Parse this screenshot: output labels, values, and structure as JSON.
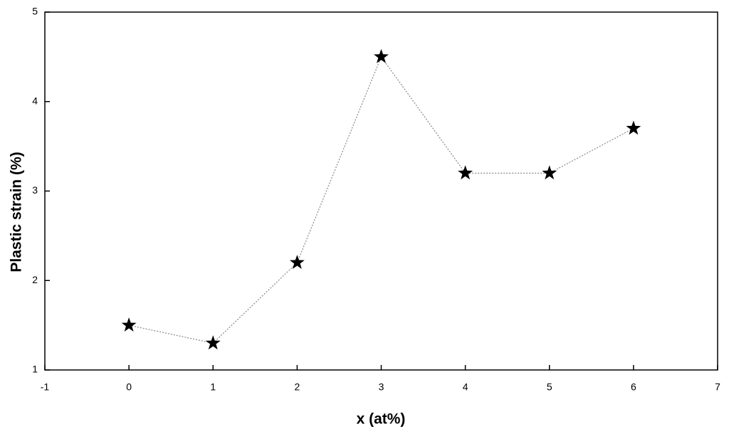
{
  "chart_data": {
    "type": "line",
    "xlabel": "x (at%)",
    "ylabel": "Plastic strain (%)",
    "x": [
      0,
      1,
      2,
      3,
      4,
      5,
      6
    ],
    "series": [
      {
        "color": "#000000",
        "line_color": "#888888",
        "line_style": "dotted",
        "marker": "star",
        "values": [
          1.5,
          1.3,
          2.2,
          4.5,
          3.2,
          3.2,
          3.7
        ]
      }
    ],
    "xlim": [
      -1,
      7
    ],
    "xticks": [
      -1,
      0,
      1,
      2,
      3,
      4,
      5,
      6,
      7
    ],
    "ylim": [
      1,
      5
    ],
    "yticks": [
      1,
      2,
      3,
      4,
      5
    ],
    "grid": false
  }
}
